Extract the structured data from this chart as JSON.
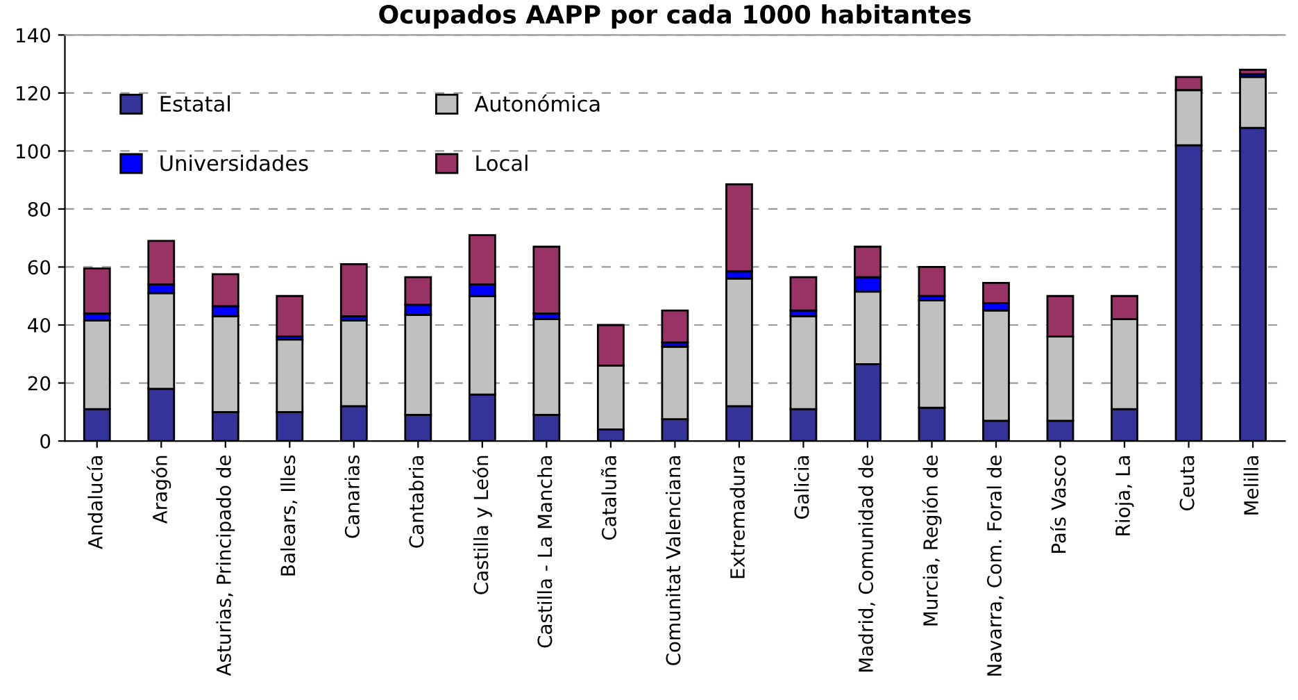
{
  "chart_data": {
    "type": "bar",
    "title": "Ocupados AAPP por cada 1000 habitantes",
    "stacked": true,
    "categories": [
      "Andalucía",
      "Aragón",
      "Asturias, Principado de",
      "Balears, Illes",
      "Canarias",
      "Cantabria",
      "Castilla y León",
      "Castilla - La Mancha",
      "Cataluña",
      "Comunitat Valenciana",
      "Extremadura",
      "Galicia",
      "Madrid, Comunidad de",
      "Murcia, Región de",
      "Navarra, Com. Foral de",
      "País Vasco",
      "Rioja, La",
      "Ceuta",
      "Melilla"
    ],
    "series": [
      {
        "name": "Estatal",
        "color": "#333399",
        "values": [
          11,
          18,
          10,
          10,
          12,
          9,
          16,
          9,
          4,
          7.5,
          12,
          11,
          26.5,
          11.5,
          7,
          7,
          11,
          102,
          108
        ]
      },
      {
        "name": "Autonómica",
        "color": "#c0c0c0",
        "values": [
          30.5,
          33,
          33,
          25,
          29.5,
          34.5,
          34,
          33,
          22,
          25,
          44,
          32,
          25,
          37,
          38,
          29,
          31,
          19,
          17.5
        ]
      },
      {
        "name": "Universidades",
        "color": "#0000ff",
        "values": [
          2.5,
          3,
          3.5,
          1,
          1.5,
          3.5,
          4,
          2,
          null,
          1.5,
          2.5,
          2,
          5,
          1.5,
          2.5,
          null,
          null,
          null,
          1
        ]
      },
      {
        "name": "Local",
        "color": "#993366",
        "values": [
          15.5,
          15,
          11,
          14,
          18,
          9.5,
          17,
          23,
          14,
          11,
          30,
          11.5,
          10.5,
          10,
          7,
          14,
          8,
          4.5,
          1.5
        ]
      }
    ],
    "ylim": [
      0,
      140
    ],
    "yticks": [
      0,
      20,
      40,
      60,
      80,
      100,
      120,
      140
    ],
    "grid": "y",
    "legend": "top left"
  }
}
